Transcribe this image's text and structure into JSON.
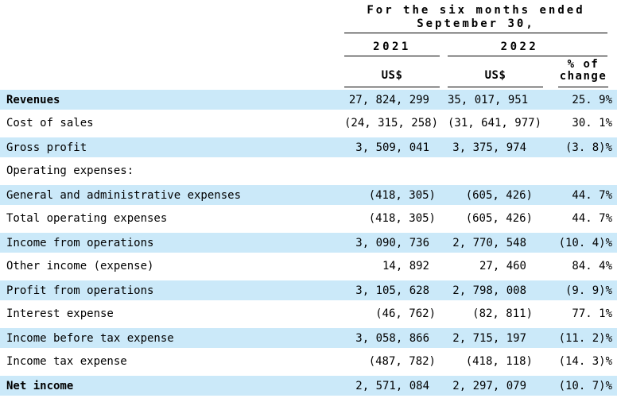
{
  "page": {
    "background_color": "#ffffff",
    "highlight_row_color": "#cbe9f9",
    "text_color": "#000000",
    "rule_color": "#000000"
  },
  "table": {
    "title_line1": "For the six months ended",
    "title_line2": "September 30,",
    "years": [
      "2021",
      "2022"
    ],
    "currency_2021": "US$",
    "currency_2022": "US$",
    "pct_header_line1": "% of",
    "pct_header_line2": "change",
    "rows": [
      {
        "label": "Revenues",
        "us_2021": "27, 824, 299",
        "us_2022": "35, 017, 951",
        "pct_change": "25. 9%",
        "highlight": true,
        "bold": true
      },
      {
        "label": "Cost of sales",
        "us_2021": "(24, 315, 258)",
        "us_2022": "(31, 641, 977)",
        "pct_change": "30. 1%",
        "highlight": false,
        "bold": false
      },
      {
        "label": "Gross profit",
        "us_2021": "3, 509, 041",
        "us_2022": "3, 375, 974",
        "pct_change": "(3. 8)%",
        "highlight": true,
        "bold": false
      },
      {
        "label": "Operating expenses:",
        "us_2021": "",
        "us_2022": "",
        "pct_change": "",
        "highlight": false,
        "bold": false
      },
      {
        "label": "General and administrative expenses",
        "us_2021": "(418, 305)",
        "us_2022": "(605, 426)",
        "pct_change": "44. 7%",
        "highlight": true,
        "bold": false
      },
      {
        "label": "Total operating expenses",
        "us_2021": "(418, 305)",
        "us_2022": "(605, 426)",
        "pct_change": "44. 7%",
        "highlight": false,
        "bold": false
      },
      {
        "label": "Income from operations",
        "us_2021": "3, 090, 736",
        "us_2022": "2, 770, 548",
        "pct_change": "(10. 4)%",
        "highlight": true,
        "bold": false
      },
      {
        "label": "Other income (expense)",
        "us_2021": "14, 892",
        "us_2022": "27, 460",
        "pct_change": "84. 4%",
        "highlight": false,
        "bold": false
      },
      {
        "label": "Profit from operations",
        "us_2021": "3, 105, 628",
        "us_2022": "2, 798, 008",
        "pct_change": "(9. 9)%",
        "highlight": true,
        "bold": false
      },
      {
        "label": "Interest expense",
        "us_2021": "(46, 762)",
        "us_2022": "(82, 811)",
        "pct_change": "77. 1%",
        "highlight": false,
        "bold": false
      },
      {
        "label": "Income before tax expense",
        "us_2021": "3, 058, 866",
        "us_2022": "2, 715, 197",
        "pct_change": "(11. 2)%",
        "highlight": true,
        "bold": false
      },
      {
        "label": "Income tax expense",
        "us_2021": "(487, 782)",
        "us_2022": "(418, 118)",
        "pct_change": "(14. 3)%",
        "highlight": false,
        "bold": false
      },
      {
        "label": "Net income",
        "us_2021": "2, 571, 084",
        "us_2022": "2, 297, 079",
        "pct_change": "(10. 7)%",
        "highlight": true,
        "bold": true
      }
    ]
  }
}
